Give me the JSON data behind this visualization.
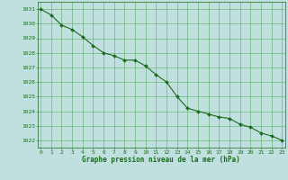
{
  "x": [
    0,
    1,
    2,
    3,
    4,
    5,
    6,
    7,
    8,
    9,
    10,
    11,
    12,
    13,
    14,
    15,
    16,
    17,
    18,
    19,
    20,
    21,
    22,
    23
  ],
  "y": [
    1031.0,
    1030.6,
    1029.9,
    1029.6,
    1029.1,
    1028.5,
    1028.0,
    1027.8,
    1027.5,
    1027.5,
    1027.1,
    1026.5,
    1026.0,
    1025.0,
    1024.2,
    1024.0,
    1023.8,
    1023.6,
    1023.5,
    1023.1,
    1022.9,
    1022.5,
    1022.3,
    1022.0
  ],
  "line_color": "#1a6b1a",
  "marker_color": "#1a6b1a",
  "bg_color": "#c0e0e0",
  "grid_color": "#40a040",
  "text_color": "#1a6b1a",
  "xlabel": "Graphe pression niveau de la mer (hPa)",
  "ylim": [
    1021.5,
    1031.5
  ],
  "yticks": [
    1022,
    1023,
    1024,
    1025,
    1026,
    1027,
    1028,
    1029,
    1030,
    1031
  ],
  "xticks": [
    0,
    1,
    2,
    3,
    4,
    5,
    6,
    7,
    8,
    9,
    10,
    11,
    12,
    13,
    14,
    15,
    16,
    17,
    18,
    19,
    20,
    21,
    22,
    23
  ],
  "xlim": [
    -0.3,
    23.3
  ]
}
